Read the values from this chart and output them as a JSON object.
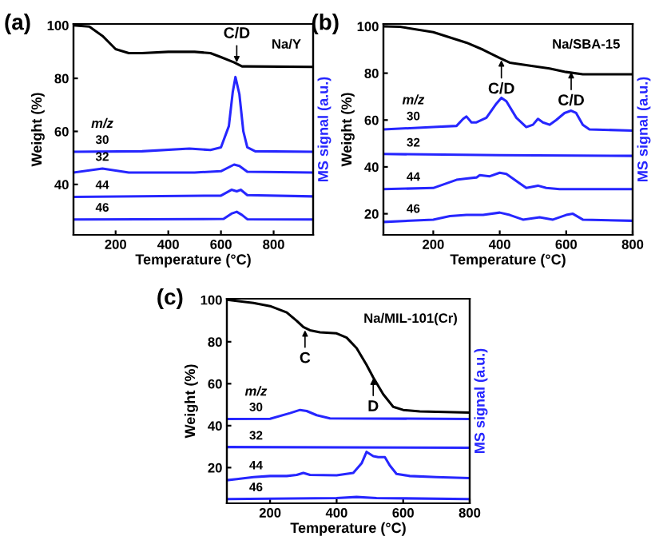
{
  "chart_data": [
    {
      "type": "line",
      "title": "(a)",
      "subtitle": "Na/Y",
      "xlabel": "Temperature (°C)",
      "ylabel": "Weight (%)",
      "y2label": "MS signal (a.u.)",
      "legend_title": "m/z",
      "xlim": [
        40,
        950
      ],
      "xticks": [
        200,
        400,
        600,
        800
      ],
      "ylim": [
        21,
        100.5
      ],
      "yticks": [
        40,
        60,
        80,
        100
      ],
      "annotations": [
        {
          "text": "C/D",
          "x": 660,
          "y": 86
        }
      ],
      "series": [
        {
          "color": "#000000",
          "x": [
            40,
            100,
            150,
            200,
            250,
            300,
            400,
            500,
            560,
            600,
            650,
            680,
            700,
            950
          ],
          "values": [
            100,
            99.5,
            96,
            91,
            89.5,
            89.5,
            90,
            90,
            89.5,
            88,
            86,
            84.5,
            84.5,
            84.3
          ]
        },
        {
          "name": "30",
          "color": "#2626ff",
          "x": [
            40,
            300,
            480,
            560,
            600,
            630,
            645,
            655,
            670,
            685,
            700,
            730,
            950
          ],
          "values": [
            52.3,
            52.5,
            53.5,
            53,
            54,
            62,
            75,
            80.5,
            74,
            60,
            54,
            52.5,
            52.3
          ]
        },
        {
          "name": "32",
          "color": "#2626ff",
          "x": [
            40,
            150,
            250,
            500,
            600,
            650,
            670,
            700,
            950
          ],
          "values": [
            44.5,
            46,
            44.5,
            44.5,
            45,
            47.5,
            47,
            44.8,
            44.5
          ]
        },
        {
          "name": "44",
          "color": "#2626ff",
          "x": [
            40,
            600,
            640,
            660,
            675,
            700,
            950
          ],
          "values": [
            35.3,
            35.8,
            38,
            37.4,
            38,
            36,
            35.5
          ]
        },
        {
          "name": "46",
          "color": "#2626ff",
          "x": [
            40,
            610,
            640,
            660,
            680,
            700,
            950
          ],
          "values": [
            26.8,
            27,
            29,
            29.7,
            28.5,
            26.9,
            26.8
          ]
        }
      ]
    },
    {
      "type": "line",
      "title": "(b)",
      "subtitle": "Na/SBA-15",
      "xlabel": "Temperature (°C)",
      "ylabel": "Weight (%)",
      "y2label": "MS signal (a.u.)",
      "legend_title": "m/z",
      "xlim": [
        50,
        800
      ],
      "xticks": [
        200,
        400,
        600,
        800
      ],
      "ylim": [
        11,
        101
      ],
      "yticks": [
        20,
        40,
        60,
        80,
        100
      ],
      "annotations": [
        {
          "text": "C/D",
          "x": 405,
          "y": 86
        },
        {
          "text": "C/D",
          "x": 615,
          "y": 81
        }
      ],
      "series": [
        {
          "color": "#000000",
          "x": [
            50,
            100,
            200,
            300,
            350,
            400,
            430,
            500,
            550,
            600,
            650,
            700,
            800
          ],
          "values": [
            100,
            99.8,
            97.5,
            93,
            90,
            86.5,
            84.5,
            83,
            82,
            80.5,
            79.5,
            79.5,
            79.5
          ]
        },
        {
          "name": "30",
          "color": "#2626ff",
          "x": [
            50,
            200,
            270,
            290,
            300,
            315,
            330,
            360,
            390,
            405,
            420,
            450,
            480,
            500,
            515,
            530,
            550,
            570,
            595,
            615,
            630,
            650,
            670,
            800
          ],
          "values": [
            56,
            57,
            57.5,
            60.5,
            61.5,
            59,
            59,
            61,
            67,
            69.5,
            68,
            61,
            57,
            58,
            60.5,
            59,
            58,
            60,
            63,
            64,
            63,
            58,
            56,
            55.5
          ]
        },
        {
          "name": "32",
          "color": "#2626ff",
          "x": [
            50,
            400,
            800
          ],
          "values": [
            45.5,
            45,
            44.7
          ]
        },
        {
          "name": "44",
          "color": "#2626ff",
          "x": [
            50,
            200,
            270,
            300,
            330,
            340,
            370,
            400,
            420,
            460,
            480,
            515,
            540,
            580,
            800
          ],
          "values": [
            30.5,
            31,
            34.5,
            35,
            35.5,
            36.5,
            36,
            37.5,
            37,
            33,
            31,
            32,
            31,
            30.5,
            30.5
          ]
        },
        {
          "name": "46",
          "color": "#2626ff",
          "x": [
            50,
            200,
            250,
            300,
            350,
            400,
            430,
            470,
            520,
            560,
            600,
            620,
            650,
            800
          ],
          "values": [
            16.5,
            17.5,
            19,
            19.5,
            19.5,
            20.5,
            19.5,
            17.5,
            18.5,
            17.5,
            19.5,
            20,
            17.5,
            17
          ]
        }
      ]
    },
    {
      "type": "line",
      "title": "(c)",
      "subtitle": "Na/MIL-101(Cr)",
      "xlabel": "Temperature (°C)",
      "ylabel": "Weight (%)",
      "y2label": "MS signal (a.u.)",
      "legend_title": "m/z",
      "xlim": [
        70,
        800
      ],
      "xticks": [
        200,
        400,
        600,
        800
      ],
      "ylim": [
        3,
        100.5
      ],
      "yticks": [
        20,
        40,
        60,
        80,
        100
      ],
      "annotations": [
        {
          "text": "C",
          "x": 305,
          "y": 86
        },
        {
          "text": "D",
          "x": 510,
          "y": 63
        }
      ],
      "series": [
        {
          "color": "#000000",
          "x": [
            70,
            150,
            200,
            250,
            280,
            300,
            320,
            350,
            400,
            430,
            460,
            490,
            510,
            540,
            570,
            600,
            650,
            800
          ],
          "values": [
            100,
            98.5,
            97,
            94,
            90,
            87,
            85.5,
            84.5,
            84,
            82,
            77,
            69,
            63,
            55,
            49,
            47.5,
            46.8,
            46.2
          ]
        },
        {
          "name": "30",
          "color": "#2626ff",
          "x": [
            70,
            200,
            260,
            290,
            310,
            340,
            380,
            800
          ],
          "values": [
            43.2,
            43.3,
            46,
            47.5,
            47,
            45,
            43.5,
            43.2
          ]
        },
        {
          "name": "32",
          "color": "#2626ff",
          "x": [
            70,
            800
          ],
          "values": [
            29.8,
            29.5
          ]
        },
        {
          "name": "44",
          "color": "#2626ff",
          "x": [
            70,
            100,
            150,
            200,
            250,
            280,
            300,
            320,
            400,
            450,
            475,
            490,
            510,
            525,
            545,
            560,
            580,
            620,
            700,
            800
          ],
          "values": [
            14,
            14.5,
            15.5,
            16,
            16,
            16.5,
            17.5,
            16.5,
            16.3,
            17.5,
            22,
            27.5,
            25.5,
            25,
            25,
            21,
            17,
            16,
            15.5,
            15
          ]
        },
        {
          "name": "46",
          "color": "#2626ff",
          "x": [
            70,
            400,
            460,
            520,
            800
          ],
          "values": [
            5,
            5.5,
            6,
            5.5,
            5
          ]
        }
      ]
    }
  ]
}
